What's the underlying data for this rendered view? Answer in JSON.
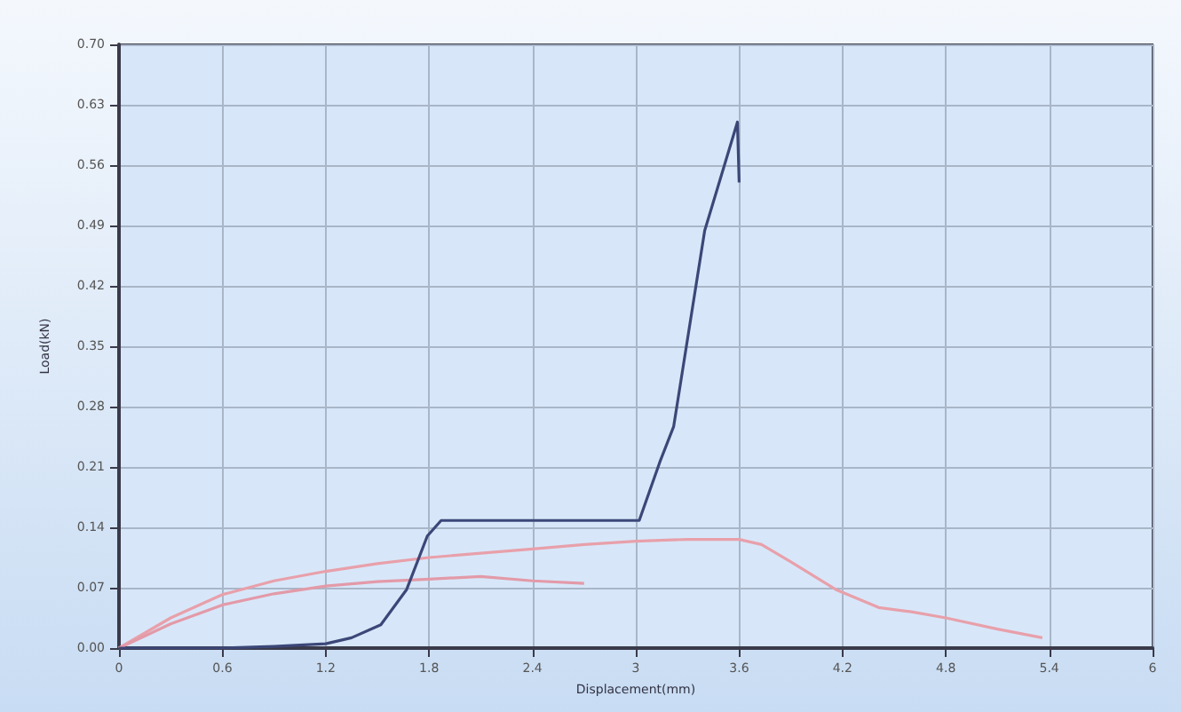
{
  "chart_data": {
    "type": "line",
    "xlabel": "Displacement(mm)",
    "ylabel": "Load(kN)",
    "xlim": [
      0,
      6
    ],
    "xticks": [
      0,
      0.6,
      1.2,
      1.8,
      2.4,
      3,
      3.6,
      4.2,
      4.8,
      5.4,
      6
    ],
    "ylim": [
      0,
      0.7
    ],
    "yticks": [
      {
        "value": 0,
        "label": "0.00"
      },
      {
        "value": 0.07,
        "label": "0.07"
      },
      {
        "value": 0.14,
        "label": "0.14"
      },
      {
        "value": 0.21,
        "label": "0.21"
      },
      {
        "value": 0.28,
        "label": "0.28"
      },
      {
        "value": 0.35,
        "label": "0.35"
      },
      {
        "value": 0.42,
        "label": "0.42"
      },
      {
        "value": 0.49,
        "label": "0.49"
      },
      {
        "value": 0.56,
        "label": "0.56"
      },
      {
        "value": 0.63,
        "label": "0.63"
      },
      {
        "value": 0.7,
        "label": "0.70"
      }
    ],
    "grid": true,
    "marker": "none",
    "line_style": "solid",
    "series": [
      {
        "color": "#e8a0aa",
        "x": [
          0,
          0.3,
          0.6,
          0.9,
          1.2,
          1.5,
          1.8,
          2.1,
          2.4,
          2.7,
          3.0,
          3.3,
          3.6,
          3.73,
          3.9,
          4.16,
          4.41,
          4.6,
          4.8,
          5.1,
          5.36
        ],
        "values": [
          0,
          0.035,
          0.062,
          0.078,
          0.089,
          0.098,
          0.105,
          0.11,
          0.115,
          0.12,
          0.124,
          0.126,
          0.126,
          0.12,
          0.1,
          0.068,
          0.047,
          0.042,
          0.035,
          0.022,
          0.012
        ]
      },
      {
        "color": "#e39aa8",
        "x": [
          0,
          0.3,
          0.6,
          0.9,
          1.2,
          1.5,
          1.8,
          2.1,
          2.4,
          2.7
        ],
        "values": [
          0,
          0.028,
          0.05,
          0.063,
          0.072,
          0.077,
          0.08,
          0.083,
          0.078,
          0.075
        ]
      },
      {
        "color": "#3c4778",
        "x": [
          0,
          0.6,
          0.9,
          1.2,
          1.35,
          1.52,
          1.67,
          1.79,
          1.87,
          2.4,
          3.02,
          3.14,
          3.22,
          3.4,
          3.59,
          3.6
        ],
        "values": [
          0,
          0,
          0.002,
          0.005,
          0.012,
          0.027,
          0.068,
          0.13,
          0.148,
          0.148,
          0.148,
          0.216,
          0.257,
          0.484,
          0.61,
          0.54
        ]
      }
    ]
  }
}
